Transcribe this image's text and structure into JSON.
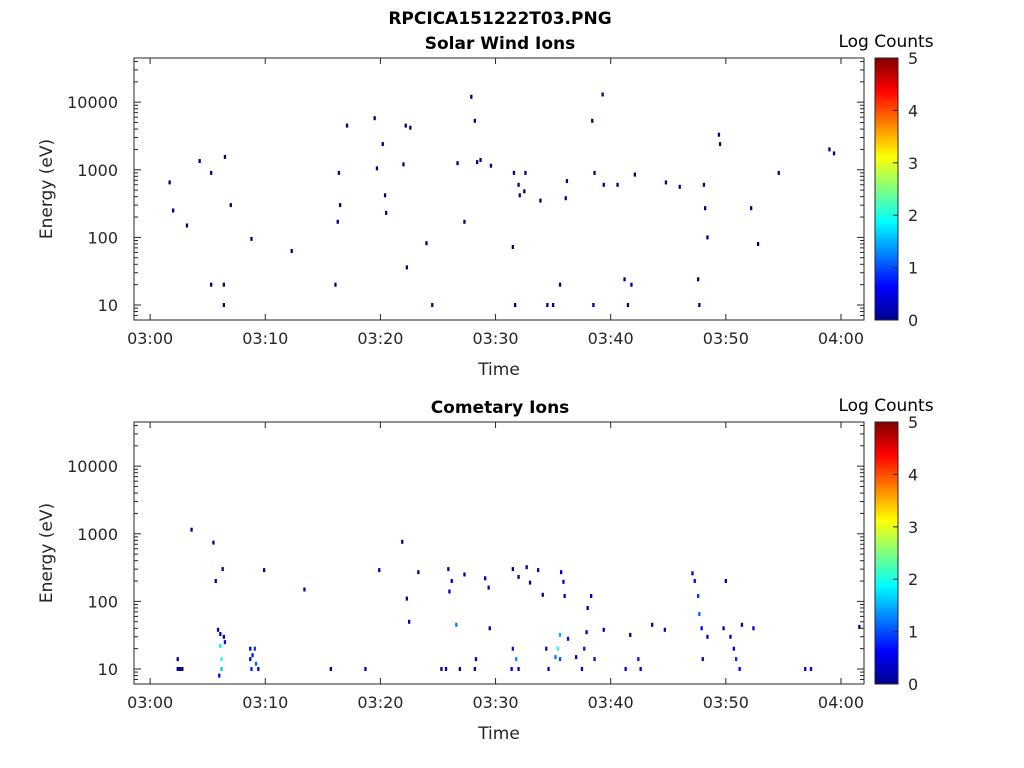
{
  "figure": {
    "title": "RPCICA151222T03.PNG",
    "background": "#ffffff"
  },
  "chart_data": [
    {
      "type": "heatmap",
      "title": "Solar Wind Ions",
      "xlabel": "Time",
      "ylabel": "Energy (eV)",
      "x_tick_labels": [
        "03:00",
        "03:10",
        "03:20",
        "03:30",
        "03:40",
        "03:50",
        "04:00"
      ],
      "x_tick_values_min": [
        0,
        10,
        20,
        30,
        40,
        50,
        60
      ],
      "xlim_min": [
        -1.4,
        62
      ],
      "y_scale": "log",
      "y_tick_labels": [
        "10",
        "100",
        "1000",
        "10000"
      ],
      "y_tick_values": [
        10,
        100,
        1000,
        10000
      ],
      "ylim": [
        6,
        45000
      ],
      "colorbar": {
        "label": "Log Counts",
        "range": [
          0,
          5
        ],
        "tick_labels": [
          "0",
          "1",
          "2",
          "3",
          "4",
          "5"
        ],
        "colormap": "jet"
      },
      "cells": [
        [
          1.7,
          650,
          0
        ],
        [
          2.0,
          250,
          0
        ],
        [
          3.2,
          150,
          0
        ],
        [
          4.3,
          1350,
          0
        ],
        [
          5.3,
          900,
          0
        ],
        [
          5.3,
          20,
          0
        ],
        [
          6.4,
          20,
          0
        ],
        [
          6.4,
          10,
          0
        ],
        [
          6.5,
          1550,
          0
        ],
        [
          7.0,
          300,
          0
        ],
        [
          8.8,
          95,
          0
        ],
        [
          12.3,
          63,
          0
        ],
        [
          16.1,
          20,
          0
        ],
        [
          16.3,
          170,
          0
        ],
        [
          16.4,
          900,
          0
        ],
        [
          16.5,
          300,
          0
        ],
        [
          17.1,
          4500,
          0
        ],
        [
          19.5,
          5800,
          0
        ],
        [
          19.7,
          1050,
          0
        ],
        [
          20.2,
          2400,
          0
        ],
        [
          20.4,
          420,
          0
        ],
        [
          20.5,
          230,
          0
        ],
        [
          22.0,
          1200,
          0
        ],
        [
          22.2,
          4500,
          0
        ],
        [
          22.3,
          36,
          0
        ],
        [
          22.6,
          4200,
          0
        ],
        [
          24.0,
          82,
          0
        ],
        [
          24.5,
          10,
          0
        ],
        [
          26.7,
          1250,
          0
        ],
        [
          27.3,
          170,
          0
        ],
        [
          27.9,
          12000,
          0
        ],
        [
          28.2,
          5300,
          0
        ],
        [
          28.4,
          1300,
          0
        ],
        [
          28.7,
          1400,
          0
        ],
        [
          29.6,
          1150,
          0
        ],
        [
          31.5,
          72,
          0
        ],
        [
          31.6,
          900,
          0
        ],
        [
          31.7,
          10,
          0
        ],
        [
          32.0,
          600,
          0
        ],
        [
          32.1,
          420,
          0
        ],
        [
          32.5,
          480,
          0
        ],
        [
          32.6,
          900,
          0
        ],
        [
          33.9,
          350,
          0
        ],
        [
          34.5,
          10,
          0
        ],
        [
          35.0,
          10,
          0
        ],
        [
          35.6,
          20,
          0
        ],
        [
          36.1,
          380,
          0
        ],
        [
          36.2,
          680,
          0
        ],
        [
          38.4,
          5300,
          0
        ],
        [
          38.5,
          10,
          0
        ],
        [
          38.6,
          900,
          0
        ],
        [
          39.3,
          13000,
          0
        ],
        [
          39.4,
          600,
          0
        ],
        [
          40.6,
          600,
          0
        ],
        [
          41.2,
          24,
          0
        ],
        [
          41.5,
          10,
          0
        ],
        [
          41.8,
          20,
          0
        ],
        [
          42.1,
          850,
          0
        ],
        [
          44.8,
          650,
          0
        ],
        [
          46.0,
          560,
          0
        ],
        [
          47.6,
          24,
          0
        ],
        [
          47.7,
          10,
          0
        ],
        [
          48.1,
          600,
          0
        ],
        [
          48.2,
          270,
          0
        ],
        [
          48.4,
          100,
          0
        ],
        [
          49.4,
          3300,
          0
        ],
        [
          49.5,
          2400,
          0
        ],
        [
          52.2,
          270,
          0
        ],
        [
          52.8,
          80,
          0
        ],
        [
          54.6,
          900,
          0
        ],
        [
          59.0,
          2000,
          0
        ],
        [
          59.4,
          1750,
          0
        ]
      ]
    },
    {
      "type": "heatmap",
      "title": "Cometary Ions",
      "xlabel": "Time",
      "ylabel": "Energy (eV)",
      "x_tick_labels": [
        "03:00",
        "03:10",
        "03:20",
        "03:30",
        "03:40",
        "03:50",
        "04:00"
      ],
      "x_tick_values_min": [
        0,
        10,
        20,
        30,
        40,
        50,
        60
      ],
      "xlim_min": [
        -1.4,
        62
      ],
      "y_scale": "log",
      "y_tick_labels": [
        "10",
        "100",
        "1000",
        "10000"
      ],
      "y_tick_values": [
        10,
        100,
        1000,
        10000
      ],
      "ylim": [
        6,
        45000
      ],
      "colorbar": {
        "label": "Log Counts",
        "range": [
          0,
          5
        ],
        "tick_labels": [
          "0",
          "1",
          "2",
          "3",
          "4",
          "5"
        ],
        "colormap": "jet"
      },
      "cells": [
        [
          2.4,
          10,
          0.1
        ],
        [
          2.4,
          14,
          0.2
        ],
        [
          2.6,
          10,
          0.1
        ],
        [
          2.8,
          10,
          0.2
        ],
        [
          3.6,
          1150,
          0.1
        ],
        [
          5.5,
          740,
          0.1
        ],
        [
          5.7,
          200,
          0.1
        ],
        [
          5.9,
          38,
          0.2
        ],
        [
          6.0,
          8,
          0.3
        ],
        [
          6.1,
          33,
          0.5
        ],
        [
          6.1,
          22,
          1.8
        ],
        [
          6.2,
          14,
          2.0
        ],
        [
          6.2,
          10,
          1.6
        ],
        [
          6.3,
          300,
          0.1
        ],
        [
          6.4,
          30,
          0.4
        ],
        [
          6.5,
          25,
          0.7
        ],
        [
          8.7,
          20,
          0.6
        ],
        [
          8.7,
          14,
          0.5
        ],
        [
          8.8,
          10,
          0.8
        ],
        [
          8.9,
          16,
          0.7
        ],
        [
          9.1,
          20,
          0.9
        ],
        [
          9.2,
          12,
          1.1
        ],
        [
          9.4,
          10,
          0.6
        ],
        [
          9.9,
          290,
          0.1
        ],
        [
          13.4,
          150,
          0.3
        ],
        [
          15.7,
          10,
          0.2
        ],
        [
          18.7,
          10,
          0.3
        ],
        [
          19.9,
          290,
          0.1
        ],
        [
          21.9,
          760,
          0.1
        ],
        [
          22.3,
          110,
          0.2
        ],
        [
          22.5,
          50,
          0.3
        ],
        [
          23.3,
          270,
          0.1
        ],
        [
          25.3,
          10,
          0.2
        ],
        [
          25.7,
          10,
          0.3
        ],
        [
          25.9,
          300,
          0.2
        ],
        [
          26.0,
          140,
          0.3
        ],
        [
          26.2,
          200,
          0.4
        ],
        [
          26.6,
          45,
          1.2
        ],
        [
          26.9,
          10,
          0.2
        ],
        [
          27.3,
          250,
          0.1
        ],
        [
          28.2,
          10,
          0.3
        ],
        [
          28.3,
          14,
          0.4
        ],
        [
          29.1,
          220,
          0.2
        ],
        [
          29.4,
          160,
          0.3
        ],
        [
          29.5,
          40,
          0.2
        ],
        [
          31.4,
          10,
          0.6
        ],
        [
          31.5,
          20,
          0.7
        ],
        [
          31.8,
          14,
          1.3
        ],
        [
          32.0,
          10,
          0.5
        ],
        [
          31.5,
          300,
          0.1
        ],
        [
          32.0,
          230,
          0.1
        ],
        [
          32.7,
          320,
          0.1
        ],
        [
          33.0,
          190,
          0.1
        ],
        [
          33.7,
          290,
          0.3
        ],
        [
          34.1,
          125,
          0.1
        ],
        [
          34.4,
          20,
          0.4
        ],
        [
          34.6,
          10,
          0.5
        ],
        [
          35.2,
          15,
          1.2
        ],
        [
          35.4,
          20,
          2.0
        ],
        [
          35.6,
          32,
          1.5
        ],
        [
          35.6,
          14,
          1.0
        ],
        [
          35.7,
          270,
          0.3
        ],
        [
          35.9,
          195,
          0.3
        ],
        [
          36.0,
          120,
          0.4
        ],
        [
          36.3,
          28,
          0.6
        ],
        [
          37.0,
          15,
          0.4
        ],
        [
          37.5,
          10,
          0.6
        ],
        [
          37.7,
          20,
          0.7
        ],
        [
          37.9,
          35,
          0.4
        ],
        [
          38.0,
          80,
          0.3
        ],
        [
          38.3,
          120,
          0.3
        ],
        [
          38.6,
          14,
          0.5
        ],
        [
          39.4,
          38,
          0.2
        ],
        [
          41.3,
          10,
          0.4
        ],
        [
          41.7,
          32,
          0.2
        ],
        [
          42.4,
          14,
          0.7
        ],
        [
          42.6,
          10,
          0.6
        ],
        [
          43.6,
          45,
          0.2
        ],
        [
          44.7,
          38,
          0.3
        ],
        [
          47.1,
          260,
          0.5
        ],
        [
          47.3,
          200,
          0.6
        ],
        [
          47.6,
          120,
          0.9
        ],
        [
          47.7,
          65,
          1.1
        ],
        [
          47.9,
          40,
          0.6
        ],
        [
          48.0,
          14,
          0.4
        ],
        [
          48.4,
          30,
          0.3
        ],
        [
          49.8,
          40,
          0.2
        ],
        [
          50.0,
          200,
          0.2
        ],
        [
          50.4,
          30,
          0.3
        ],
        [
          50.7,
          20,
          0.6
        ],
        [
          50.9,
          14,
          0.8
        ],
        [
          51.2,
          10,
          0.6
        ],
        [
          51.4,
          45,
          0.2
        ],
        [
          52.4,
          40,
          0.3
        ],
        [
          56.9,
          10,
          0.4
        ],
        [
          57.4,
          10,
          0.5
        ],
        [
          61.6,
          42,
          0.1
        ]
      ]
    }
  ]
}
